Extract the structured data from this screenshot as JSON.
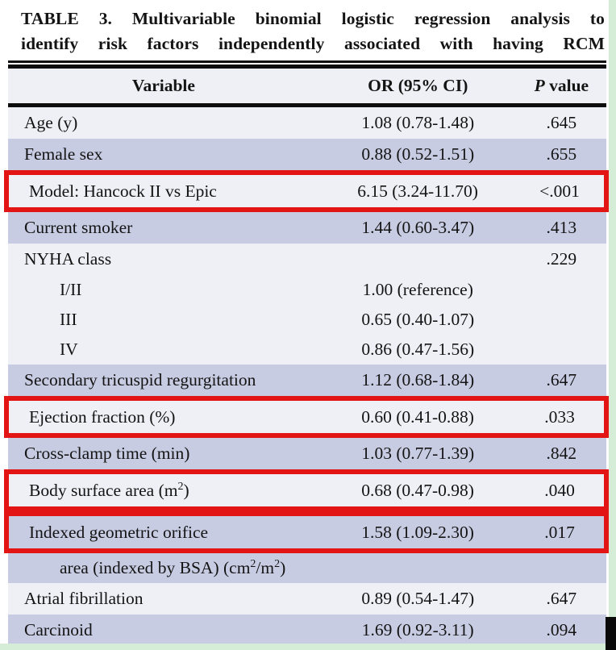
{
  "title": {
    "line1": "TABLE 3. Multivariable binomial logistic regression analysis to",
    "line2": "identify risk factors independently associated with having RCM"
  },
  "table": {
    "headers": {
      "variable": "Variable",
      "or_ci": "OR (95% CI)",
      "p_prefix": "P",
      "p_suffix": " value"
    },
    "rows": [
      {
        "variable": "Age (y)",
        "or_ci": "1.08 (0.78-1.48)",
        "p_value": ".645",
        "shade": "light",
        "highlight": false,
        "indent": false
      },
      {
        "variable": "Female sex",
        "or_ci": "0.88 (0.52-1.51)",
        "p_value": ".655",
        "shade": "lavender",
        "highlight": false,
        "indent": false
      },
      {
        "variable": "Model: Hancock II vs Epic",
        "or_ci": "6.15 (3.24-11.70)",
        "p_value": "<.001",
        "shade": "light",
        "highlight": true,
        "indent": false
      },
      {
        "variable": "Current smoker",
        "or_ci": "1.44 (0.60-3.47)",
        "p_value": ".413",
        "shade": "lavender",
        "highlight": false,
        "indent": false
      },
      {
        "variable": "NYHA class",
        "or_ci": "",
        "p_value": ".229",
        "shade": "light",
        "highlight": false,
        "indent": false
      },
      {
        "variable": "I/II",
        "or_ci": "1.00 (reference)",
        "p_value": "",
        "shade": "light",
        "highlight": false,
        "indent": true
      },
      {
        "variable": "III",
        "or_ci": "0.65 (0.40-1.07)",
        "p_value": "",
        "shade": "light",
        "highlight": false,
        "indent": true
      },
      {
        "variable": "IV",
        "or_ci": "0.86 (0.47-1.56)",
        "p_value": "",
        "shade": "light",
        "highlight": false,
        "indent": true
      },
      {
        "variable": "Secondary tricuspid regurgitation",
        "or_ci": "1.12 (0.68-1.84)",
        "p_value": ".647",
        "shade": "lavender",
        "highlight": false,
        "indent": false
      },
      {
        "variable": "Ejection fraction (%)",
        "or_ci": "0.60 (0.41-0.88)",
        "p_value": ".033",
        "shade": "light",
        "highlight": true,
        "indent": false
      },
      {
        "variable": "Cross-clamp time (min)",
        "or_ci": "1.03 (0.77-1.39)",
        "p_value": ".842",
        "shade": "lavender",
        "highlight": false,
        "indent": false
      },
      {
        "variable": "Body surface area (m²)",
        "or_ci": "0.68 (0.47-0.98)",
        "p_value": ".040",
        "shade": "light",
        "highlight": true,
        "indent": false
      },
      {
        "variable": "Indexed geometric orifice",
        "or_ci": "1.58 (1.09-2.30)",
        "p_value": ".017",
        "shade": "lavender",
        "highlight": true,
        "indent": false
      },
      {
        "variable": "area (indexed by BSA) (cm²/m²)",
        "or_ci": "",
        "p_value": "",
        "shade": "lavender",
        "highlight": false,
        "indent": true
      },
      {
        "variable": "Atrial fibrillation",
        "or_ci": "0.89 (0.54-1.47)",
        "p_value": ".647",
        "shade": "light",
        "highlight": false,
        "indent": false
      },
      {
        "variable": "Carcinoid",
        "or_ci": "1.69 (0.92-3.11)",
        "p_value": ".094",
        "shade": "lavender",
        "highlight": false,
        "indent": false
      }
    ]
  },
  "colors": {
    "row_light": "#eef0f6",
    "row_lavender": "#c8cce3",
    "highlight_border": "#e31414",
    "rule_black": "#0d0d0d",
    "frame_green": "#d5ecd6",
    "corner_black": "#0a0a0a"
  }
}
